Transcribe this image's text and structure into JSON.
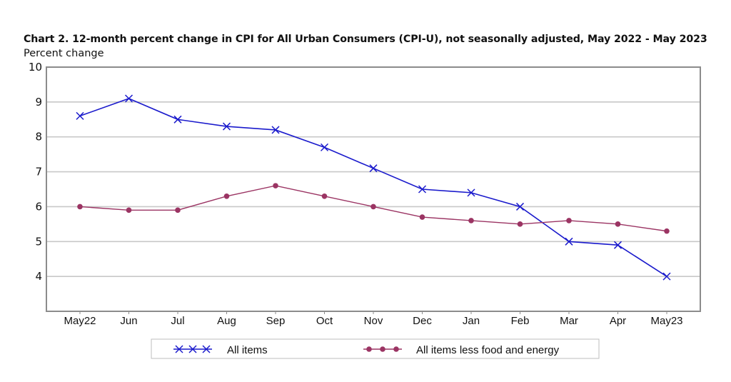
{
  "chart_data": {
    "type": "line",
    "title": "Chart 2. 12-month percent change in CPI for All Urban Consumers (CPI-U), not seasonally adjusted, May 2022 - May 2023",
    "ylabel": "Percent change",
    "xlabel": "",
    "ylim": [
      3,
      10
    ],
    "yticks": [
      4,
      5,
      6,
      7,
      8,
      9,
      10
    ],
    "grid": true,
    "categories": [
      "May22",
      "Jun",
      "Jul",
      "Aug",
      "Sep",
      "Oct",
      "Nov",
      "Dec",
      "Jan",
      "Feb",
      "Mar",
      "Apr",
      "May23"
    ],
    "legend_position": "bottom",
    "series": [
      {
        "name": "All items",
        "color": "#1a1acc",
        "marker": "x",
        "values": [
          8.6,
          9.1,
          8.5,
          8.3,
          8.2,
          7.7,
          7.1,
          6.5,
          6.4,
          6.0,
          5.0,
          4.9,
          4.0
        ]
      },
      {
        "name": "All items less food and energy",
        "color": "#9b3463",
        "marker": "dot",
        "values": [
          6.0,
          5.9,
          5.9,
          6.3,
          6.6,
          6.3,
          6.0,
          5.7,
          5.6,
          5.5,
          5.6,
          5.5,
          5.3
        ]
      }
    ]
  }
}
